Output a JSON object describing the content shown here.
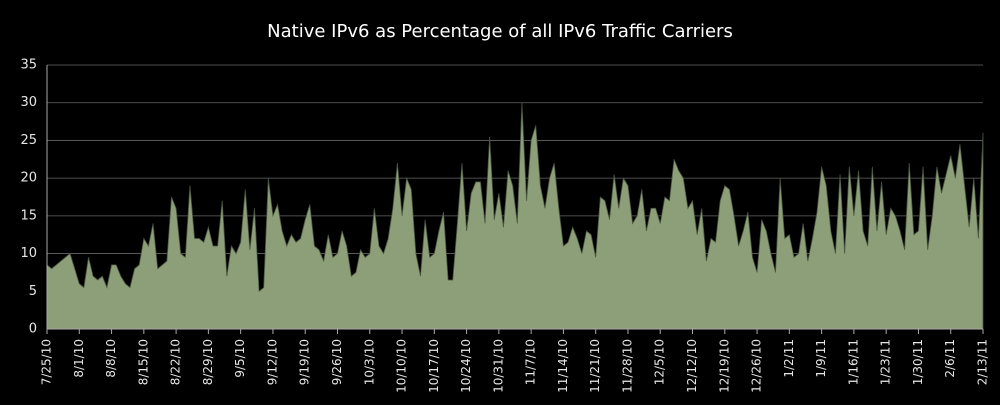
{
  "chart_data": {
    "type": "area",
    "title": "Native IPv6 as Percentage of all IPv6 Traffic Carriers",
    "color": "#8d9f78",
    "grid": true,
    "ylim": [
      0,
      35
    ],
    "yticks": [
      0,
      5,
      10,
      15,
      20,
      25,
      30,
      35
    ],
    "categories": [
      "7/25/10",
      null,
      null,
      null,
      null,
      null,
      null,
      "8/1/10",
      null,
      null,
      null,
      null,
      null,
      null,
      "8/8/10",
      null,
      null,
      null,
      null,
      null,
      null,
      "8/15/10",
      null,
      null,
      null,
      null,
      null,
      null,
      "8/22/10",
      null,
      null,
      null,
      null,
      null,
      null,
      "8/29/10",
      null,
      null,
      null,
      null,
      null,
      null,
      "9/5/10",
      null,
      null,
      null,
      null,
      null,
      null,
      "9/12/10",
      null,
      null,
      null,
      null,
      null,
      null,
      "9/19/10",
      null,
      null,
      null,
      null,
      null,
      null,
      "9/26/10",
      null,
      null,
      null,
      null,
      null,
      null,
      "10/3/10",
      null,
      null,
      null,
      null,
      null,
      null,
      "10/10/10",
      null,
      null,
      null,
      null,
      null,
      null,
      "10/17/10",
      null,
      null,
      null,
      null,
      null,
      null,
      "10/24/10",
      null,
      null,
      null,
      null,
      null,
      null,
      "10/31/10",
      null,
      null,
      null,
      null,
      null,
      null,
      "11/7/10",
      null,
      null,
      null,
      null,
      null,
      null,
      "11/14/10",
      null,
      null,
      null,
      null,
      null,
      null,
      "11/21/10",
      null,
      null,
      null,
      null,
      null,
      null,
      "11/28/10",
      null,
      null,
      null,
      null,
      null,
      null,
      "12/5/10",
      null,
      null,
      null,
      null,
      null,
      null,
      "12/12/10",
      null,
      null,
      null,
      null,
      null,
      null,
      "12/19/10",
      null,
      null,
      null,
      null,
      null,
      null,
      "12/26/10",
      null,
      null,
      null,
      null,
      null,
      null,
      "1/2/11",
      null,
      null,
      null,
      null,
      null,
      null,
      "1/9/11",
      null,
      null,
      null,
      null,
      null,
      null,
      "1/16/11",
      null,
      null,
      null,
      null,
      null,
      null,
      "1/23/11",
      null,
      null,
      null,
      null,
      null,
      null,
      "1/30/11",
      null,
      null,
      null,
      null,
      null,
      null,
      "2/6/11",
      null,
      null,
      null,
      null,
      null,
      null,
      "2/13/11"
    ],
    "values": [
      8.5,
      8,
      8.5,
      9,
      9.5,
      10,
      8,
      6,
      5.5,
      9.5,
      7,
      6.5,
      7,
      5.5,
      8.5,
      8.5,
      7,
      6,
      5.5,
      8,
      8.5,
      12,
      11,
      14,
      8,
      8.5,
      9,
      17.5,
      16,
      10,
      9.5,
      19,
      12,
      12,
      11.5,
      13.5,
      11,
      11,
      17,
      7,
      11,
      10,
      11.5,
      18.5,
      10.5,
      16,
      5,
      5.5,
      20,
      15,
      16.5,
      13,
      11,
      12.5,
      11.5,
      12,
      14.5,
      16.5,
      11,
      10.5,
      9,
      12.5,
      9.5,
      10,
      13,
      11,
      7,
      7.5,
      10.5,
      9.5,
      10,
      16,
      11,
      10,
      12,
      16,
      22,
      15,
      20,
      18.5,
      10,
      7,
      14.5,
      9.5,
      10,
      13,
      15.5,
      6.5,
      6.5,
      14,
      22,
      13,
      18,
      19.5,
      19.5,
      14,
      25.5,
      14.5,
      18,
      13.5,
      21,
      19,
      14,
      30,
      17,
      25,
      27,
      19,
      16,
      20,
      22,
      16,
      11,
      11.5,
      13.5,
      12,
      10,
      13,
      12.5,
      9.5,
      17.5,
      17,
      14.5,
      20.5,
      16,
      20,
      19,
      14,
      15,
      18.5,
      13,
      16,
      16,
      14,
      17.5,
      17,
      22.5,
      21,
      20,
      16,
      17,
      12.5,
      16,
      9,
      12,
      11.5,
      17,
      19,
      18.5,
      15,
      11,
      13,
      15.5,
      9.5,
      7.5,
      14.5,
      13,
      10,
      7.5,
      20,
      12,
      12.5,
      9.5,
      10,
      14,
      9,
      12,
      15.5,
      21.5,
      19,
      13,
      10,
      20.5,
      10,
      21.5,
      15,
      21,
      13,
      11,
      21.5,
      13,
      19.5,
      12.5,
      16,
      15,
      13,
      10.5,
      22,
      12.5,
      13,
      21.5,
      10.5,
      15,
      21.5,
      18,
      20.5,
      23,
      20,
      24.5,
      19,
      13.5,
      20,
      12,
      26
    ]
  }
}
